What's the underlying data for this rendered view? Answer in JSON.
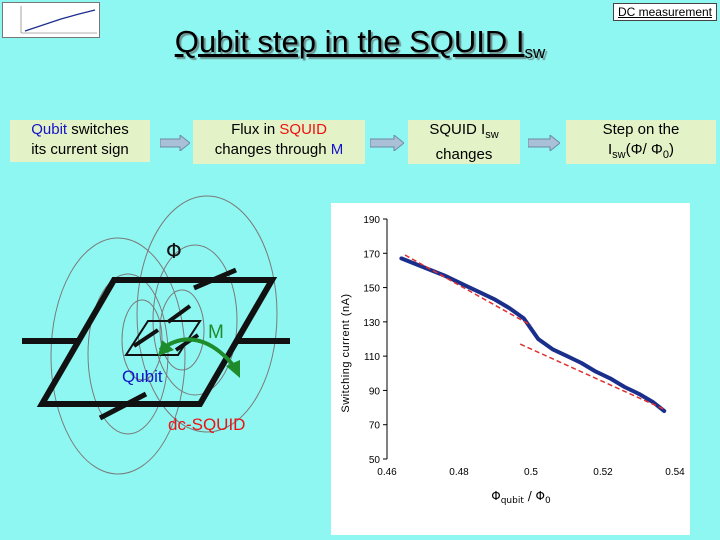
{
  "header": {
    "corner_link": "DC measurement",
    "title_main": "Qubit step in the SQUID I",
    "title_sub": "sw"
  },
  "flow": {
    "box1": {
      "part1": "Qubit",
      "part2": " switches",
      "line2": "its current sign"
    },
    "box2": {
      "line1a": "Flux in ",
      "line1b": "SQUID",
      "line2a": "changes through ",
      "line2b": "M"
    },
    "box3": {
      "line1a": "SQUID I",
      "line1sub": "sw",
      "line2": "changes"
    },
    "box4": {
      "line1": "Step on the",
      "line2a": "I",
      "line2sub": "sw",
      "line2b": "(Φ/ Φ",
      "line2sub0": "0",
      "line2c": ")"
    }
  },
  "diagram": {
    "phi_label": "Φ",
    "m_label": "M",
    "qubit_label": "Qubit",
    "squid_label": "dc-SQUID"
  },
  "colors": {
    "background": "#8ff7f2",
    "flow_box": "#e3f2c7",
    "accent_red": "#ee1111",
    "accent_blue": "#1414c8",
    "data_line": "#1a2e8c",
    "fit_line": "#e03030",
    "arrow_green": "#1e8c2a"
  },
  "chart_data": {
    "type": "line",
    "xlabel_main": "Φ",
    "xlabel_sub": "qubit",
    "xlabel_rest": " / Φ",
    "xlabel_sub0": "0",
    "ylabel": "Switching current (nA)",
    "xlim": [
      0.46,
      0.54
    ],
    "ylim": [
      50,
      190
    ],
    "xticks": [
      "0.46",
      "0.48",
      "0.5",
      "0.52",
      "0.54"
    ],
    "yticks": [
      "190",
      "170",
      "150",
      "130",
      "110",
      "90",
      "70",
      "50"
    ],
    "grid": false,
    "series": [
      {
        "kind": "data",
        "x": [
          0.464,
          0.47,
          0.476,
          0.482,
          0.486,
          0.49,
          0.494,
          0.498,
          0.5,
          0.502,
          0.506,
          0.51,
          0.514,
          0.518,
          0.522,
          0.526,
          0.53,
          0.534,
          0.537
        ],
        "y": [
          167,
          162,
          157,
          151,
          147,
          143,
          138,
          132,
          126,
          120,
          114,
          110,
          106,
          101,
          97,
          92,
          88,
          83,
          78
        ]
      },
      {
        "kind": "fit",
        "x": [
          0.465,
          0.5
        ],
        "y": [
          169,
          128
        ]
      },
      {
        "kind": "fit",
        "x": [
          0.497,
          0.537
        ],
        "y": [
          117,
          79
        ]
      }
    ]
  }
}
